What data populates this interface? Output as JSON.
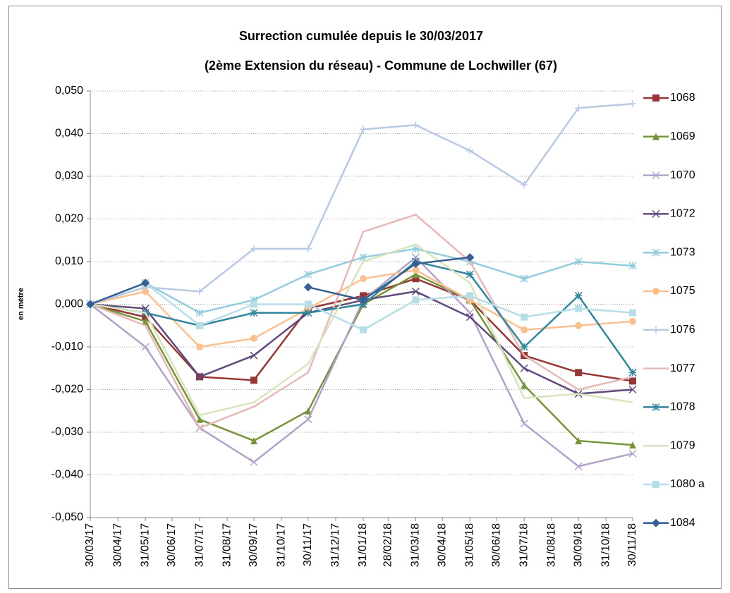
{
  "chart_data": {
    "type": "line",
    "title": "Surrection cumulée depuis le 30/03/2017",
    "subtitle": "(2ème Extension  du réseau) - Commune de Lochwiller (67)",
    "y_label": "en mètre",
    "x": [
      "30/03/17",
      "31/05/17",
      "31/07/17",
      "30/09/17",
      "30/11/17",
      "31/01/18",
      "31/03/18",
      "31/05/18",
      "31/07/18",
      "30/09/18",
      "30/11/18"
    ],
    "xlim": [
      "30/03/17",
      "30/11/18"
    ],
    "xticks": [
      "30/03/17",
      "30/04/17",
      "31/05/17",
      "30/06/17",
      "31/07/17",
      "31/08/17",
      "30/09/17",
      "31/10/17",
      "30/11/17",
      "31/12/17",
      "31/01/18",
      "28/02/18",
      "31/03/18",
      "30/04/18",
      "31/05/18",
      "30/06/18",
      "31/07/18",
      "31/08/18",
      "30/09/18",
      "31/10/18",
      "30/11/18"
    ],
    "ylim": [
      -0.05,
      0.05
    ],
    "yticks": [
      {
        "value": 0.05,
        "label": "0,050"
      },
      {
        "value": 0.04,
        "label": "0,040"
      },
      {
        "value": 0.03,
        "label": "0,030"
      },
      {
        "value": 0.02,
        "label": "0,020"
      },
      {
        "value": 0.01,
        "label": "0,010"
      },
      {
        "value": 0,
        "label": "0,000"
      },
      {
        "value": -0.01,
        "label": "-0,010"
      },
      {
        "value": -0.02,
        "label": "-0,020"
      },
      {
        "value": -0.03,
        "label": "-0,030"
      },
      {
        "value": -0.04,
        "label": "-0,040"
      },
      {
        "value": -0.05,
        "label": "-0,050"
      }
    ],
    "grid": true,
    "legend": "right",
    "series": [
      {
        "name": "1068",
        "color": "#953735",
        "marker": "square",
        "values": [
          0,
          -0.003,
          -0.017,
          -0.0178,
          -0.001,
          0.002,
          0.006,
          0.001,
          -0.012,
          -0.016,
          -0.018
        ]
      },
      {
        "name": "1069",
        "color": "#77933c",
        "marker": "triangle",
        "values": [
          0,
          -0.004,
          -0.027,
          -0.032,
          -0.025,
          0,
          0.007,
          0.001,
          -0.019,
          -0.032,
          -0.033
        ]
      },
      {
        "name": "1070",
        "color": "#b3a2c7",
        "marker": "x",
        "values": [
          0,
          -0.01,
          -0.029,
          -0.037,
          -0.027,
          0.001,
          0.011,
          -0.002,
          -0.028,
          -0.038,
          -0.035
        ]
      },
      {
        "name": "1072",
        "color": "#604a7b",
        "marker": "x",
        "values": [
          0,
          -0.001,
          -0.017,
          -0.012,
          -0.002,
          0.001,
          0.003,
          -0.003,
          -0.015,
          -0.021,
          -0.02
        ]
      },
      {
        "name": "1073",
        "color": "#93cddd",
        "marker": "star",
        "values": [
          0,
          0.005,
          -0.002,
          0.001,
          0.007,
          0.011,
          0.013,
          0.01,
          0.006,
          0.01,
          0.009
        ]
      },
      {
        "name": "1075",
        "color": "#fac090",
        "marker": "circle",
        "values": [
          0,
          0.003,
          -0.01,
          -0.008,
          -0.001,
          0.006,
          0.008,
          0.001,
          -0.006,
          -0.005,
          -0.004
        ]
      },
      {
        "name": "1076",
        "color": "#b9c9e4",
        "marker": "plus",
        "values": [
          0,
          0.004,
          0.003,
          0.013,
          0.013,
          0.041,
          0.042,
          0.036,
          0.028,
          0.046,
          0.047
        ]
      },
      {
        "name": "1077",
        "color": "#e6b9b8",
        "marker": "none",
        "values": [
          0,
          -0.005,
          -0.029,
          -0.024,
          -0.016,
          0.017,
          0.021,
          0.01,
          -0.012,
          -0.02,
          -0.017
        ]
      },
      {
        "name": "1078",
        "color": "#31859c",
        "marker": "star",
        "values": [
          0,
          -0.002,
          -0.005,
          -0.002,
          -0.002,
          0,
          0.01,
          0.007,
          -0.01,
          0.002,
          -0.016
        ]
      },
      {
        "name": "1079",
        "color": "#d7e4bd",
        "marker": "none",
        "values": [
          0,
          -0.002,
          -0.026,
          -0.023,
          -0.014,
          0.01,
          0.014,
          0.005,
          -0.022,
          -0.021,
          -0.023
        ]
      },
      {
        "name": "1080 a",
        "color": "#b7dee8",
        "marker": "square",
        "values": [
          0,
          0.005,
          -0.005,
          0,
          0,
          -0.006,
          0.001,
          0.002,
          -0.003,
          -0.001,
          -0.002
        ]
      },
      {
        "name": "1084",
        "color": "#376092",
        "marker": "diamond",
        "values": [
          0,
          0.005,
          null,
          null,
          0.004,
          0.001,
          0.0095,
          0.011,
          null,
          null,
          null
        ]
      }
    ]
  }
}
